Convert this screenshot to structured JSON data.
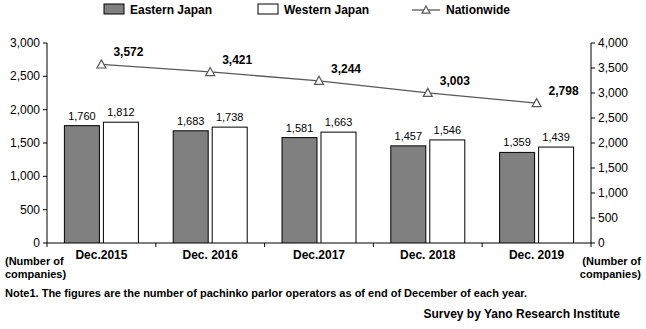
{
  "chart_data": {
    "type": "bar",
    "categories": [
      "Dec.2015",
      "Dec. 2016",
      "Dec.2017",
      "Dec. 2018",
      "Dec. 2019"
    ],
    "series": [
      {
        "name": "Eastern Japan",
        "color": "#808080",
        "values": [
          1760,
          1683,
          1581,
          1457,
          1359
        ],
        "value_labels": [
          "1,760",
          "1,683",
          "1,581",
          "1,457",
          "1,359"
        ]
      },
      {
        "name": "Western Japan",
        "color": "#ffffff",
        "values": [
          1812,
          1738,
          1663,
          1546,
          1439
        ],
        "value_labels": [
          "1,812",
          "1,738",
          "1,663",
          "1,546",
          "1,439"
        ]
      },
      {
        "name": "Nationwide",
        "type": "line",
        "axis": "y2",
        "color": "#595959",
        "marker": "triangle",
        "values": [
          3572,
          3421,
          3244,
          3003,
          2798
        ],
        "value_labels": [
          "3,572",
          "3,421",
          "3,244",
          "3,003",
          "2,798"
        ]
      }
    ],
    "ylim": [
      0,
      3000
    ],
    "yticks": [
      0,
      500,
      {
        "value": 1000,
        "label": "1,000"
      },
      {
        "value": 1500,
        "label": "1,500"
      },
      {
        "value": 2000,
        "label": "2,000"
      },
      {
        "value": 2500,
        "label": "2,500"
      },
      {
        "value": 3000,
        "label": "3,000"
      }
    ],
    "y2lim": [
      0,
      4000
    ],
    "y2ticks": [
      0,
      500,
      {
        "value": 1000,
        "label": "1,000"
      },
      {
        "value": 1500,
        "label": "1,500"
      },
      {
        "value": 2000,
        "label": "2,000"
      },
      {
        "value": 2500,
        "label": "2,500"
      },
      {
        "value": 3000,
        "label": "3,000"
      },
      {
        "value": 3500,
        "label": "3,500"
      },
      {
        "value": 4000,
        "label": "4,000"
      }
    ],
    "y_label": "(Number of companies)",
    "y2_label": "(Number of companies)",
    "annotations": [
      "Note1. The figures are the number of pachinko parlor operators as of end of December of each year.",
      "Survey by Yano Research Institute"
    ],
    "legend": "top",
    "data_labels": true,
    "grid": false
  }
}
